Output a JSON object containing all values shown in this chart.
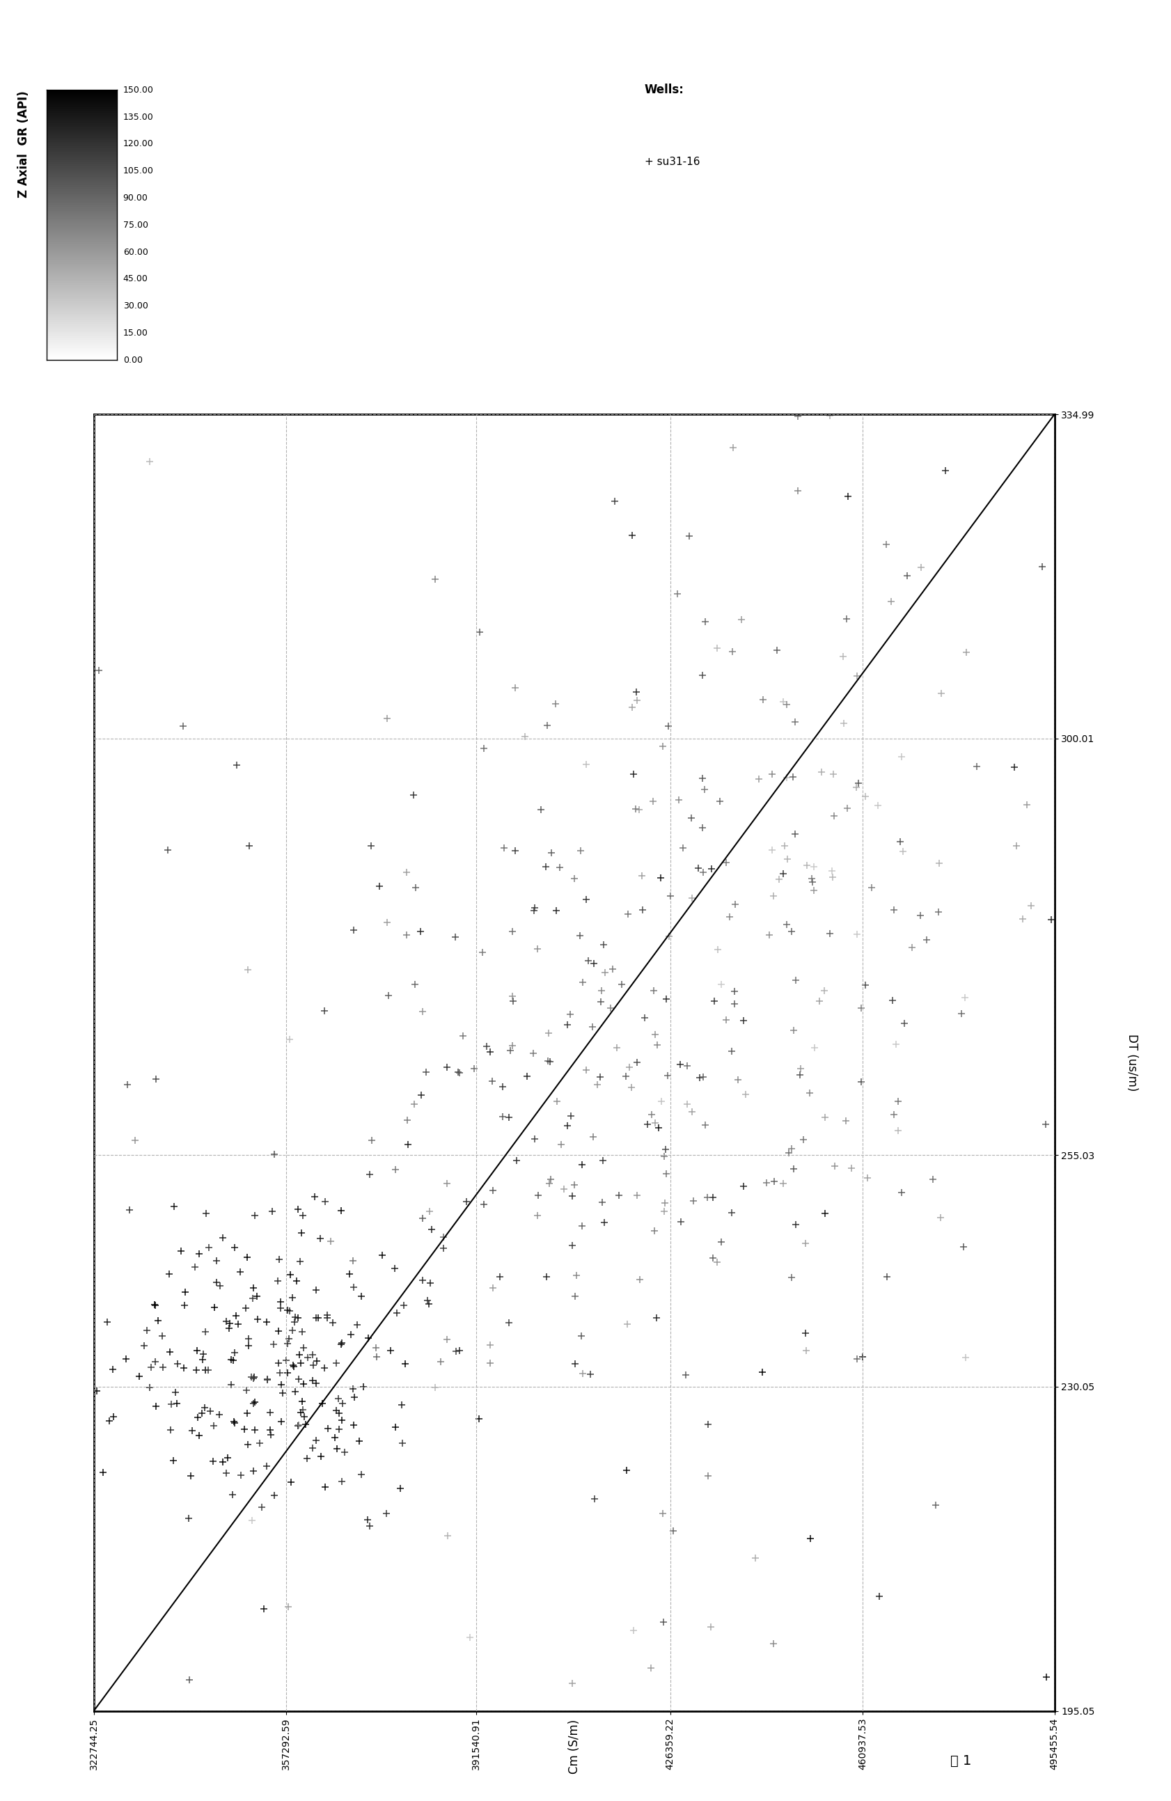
{
  "xlabel_bottom": "Cm (S/m)",
  "ylabel_right": "DT (us/m)",
  "figure_caption": "图 1",
  "x_min": 322744.25,
  "x_max": 495455.54,
  "y_min": 195.05,
  "y_max": 334.99,
  "x_ticks": [
    322744.25,
    357292.59,
    391540.91,
    426359.22,
    460937.53,
    495455.54
  ],
  "y_ticks": [
    195.05,
    230.05,
    255.03,
    300.01,
    334.99
  ],
  "colorbar_label": "Z Axial  GR (API)",
  "colorbar_min": 0,
  "colorbar_max": 150,
  "colorbar_ticks": [
    0.0,
    15.0,
    30.0,
    45.0,
    60.0,
    75.0,
    90.0,
    105.0,
    120.0,
    135.0,
    150.0
  ],
  "well_label": "Wells:",
  "well_name": "su31-16",
  "grid_color": "#aaaaaa",
  "grid_style": "--",
  "bg_color": "#ffffff",
  "line_color": "#000000",
  "trendline_x": [
    322744.25,
    495455.54
  ],
  "trendline_y": [
    195.05,
    334.99
  ],
  "seed": 42,
  "n_points": 600
}
